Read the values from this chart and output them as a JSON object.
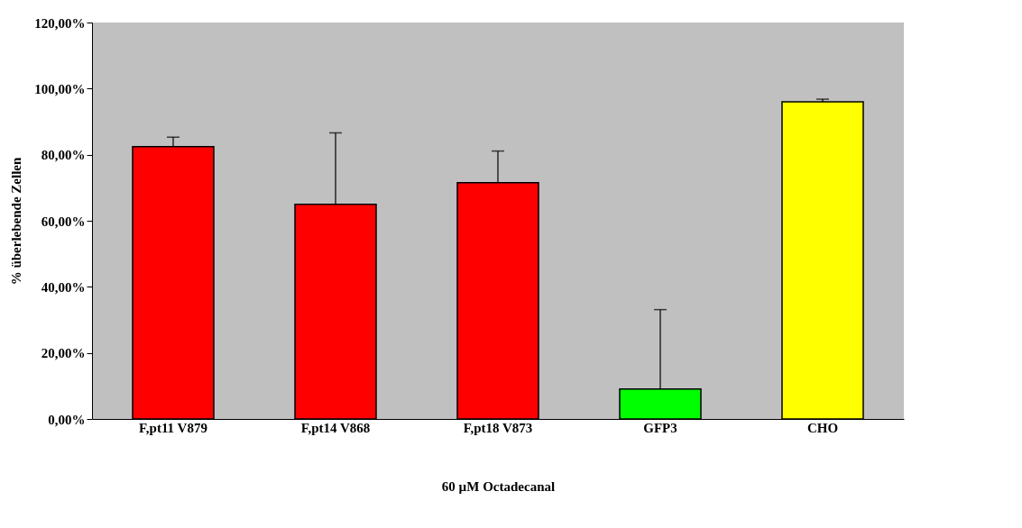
{
  "chart_data": {
    "type": "bar",
    "xlabel": "60 µM Octadecanal",
    "ylabel": "% überlebende Zellen",
    "categories": [
      "F,pt11 V879",
      "F,pt14 V868",
      "F,pt18 V873",
      "GFP3",
      "CHO"
    ],
    "values": [
      82.4,
      65.0,
      71.5,
      9.1,
      96.0
    ],
    "colors": [
      "#ff0000",
      "#ff0000",
      "#ff0000",
      "#00ff00",
      "#ffff00"
    ],
    "errors": [
      [
        82.4,
        85.3
      ],
      [
        65.0,
        86.6
      ],
      [
        71.5,
        81.1
      ],
      [
        9.1,
        33.1
      ],
      [
        96.0,
        96.8
      ]
    ],
    "ylim": [
      0,
      120
    ],
    "yticks": [
      {
        "value": 0,
        "label": "0,00%"
      },
      {
        "value": 20,
        "label": "20,00%"
      },
      {
        "value": 40,
        "label": "40,00%"
      },
      {
        "value": 60,
        "label": "60,00%"
      },
      {
        "value": 80,
        "label": "80,00%"
      },
      {
        "value": 100,
        "label": "100,00%"
      },
      {
        "value": 120,
        "label": "120,00%"
      }
    ],
    "grid": false,
    "legend": false
  }
}
